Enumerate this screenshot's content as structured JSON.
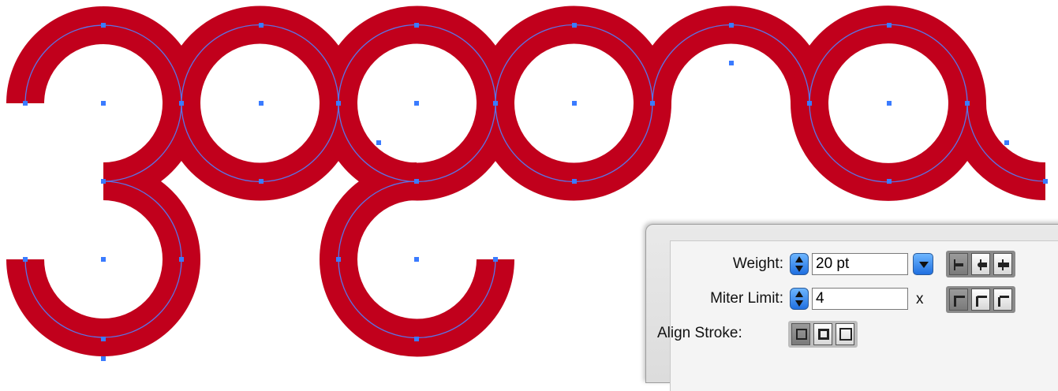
{
  "artwork": {
    "stroke_color": "#c1001c",
    "path_color": "#5b74e6",
    "anchor_color": "#3a7bff"
  },
  "stroke_panel": {
    "weight_label": "Weight:",
    "weight_value": "20 pt",
    "miter_label": "Miter Limit:",
    "miter_value": "4",
    "miter_suffix": "x",
    "align_label": "Align Stroke:",
    "cap_buttons": [
      "butt-cap-icon",
      "round-cap-icon",
      "projecting-cap-icon"
    ],
    "join_buttons": [
      "miter-join-icon",
      "round-join-icon",
      "bevel-join-icon"
    ],
    "align_buttons": [
      "align-center-icon",
      "align-inside-icon",
      "align-outside-icon"
    ]
  }
}
